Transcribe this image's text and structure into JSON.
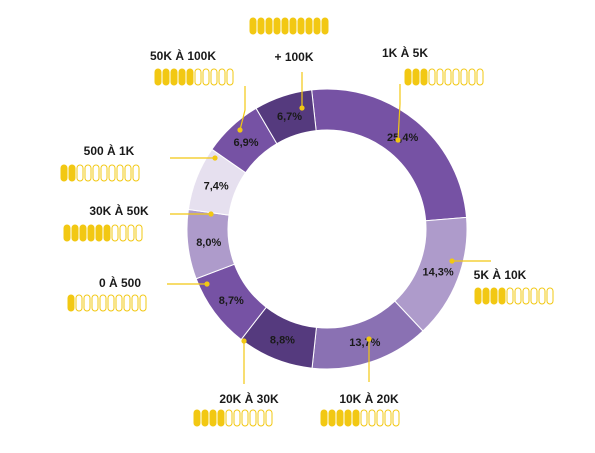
{
  "chart_data": {
    "type": "pie",
    "title": "",
    "categories": [
      "1K À 5K",
      "5K À 10K",
      "10K À 20K",
      "20K À 30K",
      "0 À 500",
      "30K À 50K",
      "500 À 1K",
      "50K À 100K",
      "+ 100K"
    ],
    "values": [
      25.4,
      14.3,
      13.7,
      8.8,
      8.7,
      8.0,
      7.4,
      6.9,
      6.7
    ],
    "value_labels": [
      "25,4%",
      "14,3%",
      "13,7%",
      "8,8%",
      "8,7%",
      "8,0%",
      "7,4%",
      "6,9%",
      "6,7%"
    ],
    "icon_fill_counts": [
      3,
      4,
      5,
      4,
      1,
      6,
      2,
      5,
      10
    ],
    "icon_total": 10,
    "slice_colors": [
      "#7652a4",
      "#ae9bcb",
      "#8a71b3",
      "#553a7e",
      "#7652a4",
      "#ae9bcb",
      "#e6e0ef",
      "#7652a4",
      "#553a7e"
    ],
    "accent_color": "#f2c813",
    "icon": "coin-stack-icon",
    "legend": "none"
  }
}
